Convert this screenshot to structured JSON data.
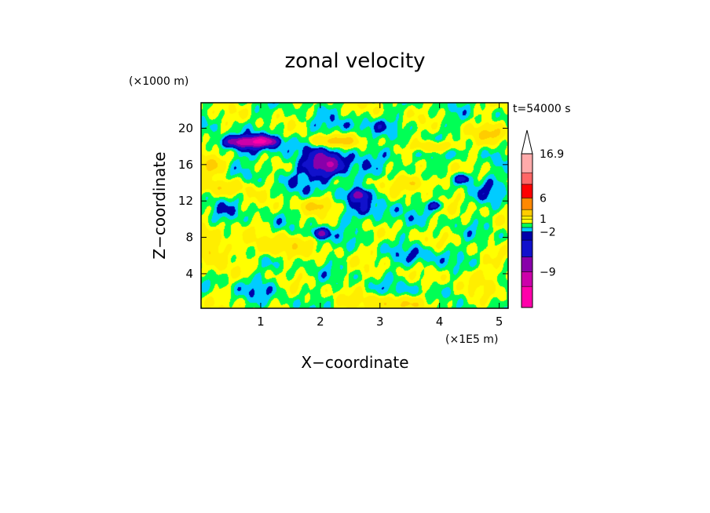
{
  "chart_data": {
    "type": "heatmap",
    "title": "zonal velocity",
    "xlabel": "X−coordinate",
    "ylabel": "Z−coordinate",
    "x_unit": "(×1E5 m)",
    "y_unit": "(×1000 m)",
    "time_label": "t=54000 s",
    "xlim": [
      0,
      5.15
    ],
    "ylim": [
      0.2,
      22.8
    ],
    "xticks": [
      1,
      2,
      3,
      4,
      5
    ],
    "yticks": [
      4,
      8,
      12,
      16,
      20
    ],
    "colorbar": {
      "levels": [
        -12,
        -9,
        -6,
        -4,
        -2,
        -1,
        0,
        1,
        2,
        4,
        6,
        8,
        12,
        16.9
      ],
      "colors": [
        "#ff00aa",
        "#cc00aa",
        "#8800aa",
        "#1111cc",
        "#0000aa",
        "#00ccff",
        "#00ff55",
        "#ffff00",
        "#ffee00",
        "#ffcc00",
        "#ff8800",
        "#ff0000",
        "#ff6666",
        "#ffaaaa"
      ],
      "labels": [
        "16.9",
        "6",
        "1",
        "−2",
        "−9"
      ],
      "label_values": [
        16.9,
        6,
        1,
        -2,
        -9
      ]
    },
    "features": [
      {
        "x": 0.7,
        "z": 18.5,
        "sx": 0.35,
        "sz": 0.6,
        "v": -6
      },
      {
        "x": 1.05,
        "z": 18.6,
        "sx": 0.25,
        "sz": 0.5,
        "v": -6
      },
      {
        "x": 0.85,
        "z": 18.0,
        "sx": 0.7,
        "sz": 1.3,
        "v": -1.8
      },
      {
        "x": 2.1,
        "z": 16.0,
        "sx": 0.28,
        "sz": 1.3,
        "v": -6
      },
      {
        "x": 2.0,
        "z": 15.5,
        "sx": 0.7,
        "sz": 2.5,
        "v": -1.6
      },
      {
        "x": 2.65,
        "z": 12.7,
        "sx": 0.12,
        "sz": 0.6,
        "v": -6
      },
      {
        "x": 2.8,
        "z": 11.0,
        "sx": 0.55,
        "sz": 1.8,
        "v": -1.6
      },
      {
        "x": 2.0,
        "z": 8.4,
        "sx": 0.13,
        "sz": 0.6,
        "v": -6
      },
      {
        "x": 3.8,
        "z": 6.0,
        "sx": 0.5,
        "sz": 1.0,
        "v": -1.5
      },
      {
        "x": 4.4,
        "z": 14.5,
        "sx": 0.15,
        "sz": 0.6,
        "v": -4
      },
      {
        "x": 3.95,
        "z": 11.5,
        "sx": 0.12,
        "sz": 0.5,
        "v": -4
      },
      {
        "x": 4.85,
        "z": 13.5,
        "sx": 0.35,
        "sz": 1.5,
        "v": -1.4
      },
      {
        "x": 2.6,
        "z": 20.3,
        "sx": 0.9,
        "sz": 0.9,
        "v": -1.2
      },
      {
        "x": 3.5,
        "z": 17.2,
        "sx": 0.8,
        "sz": 0.9,
        "v": -1.2
      },
      {
        "x": 3.6,
        "z": 2.0,
        "sx": 0.5,
        "sz": 1.2,
        "v": -1.2
      },
      {
        "x": 0.15,
        "z": 16.0,
        "sx": 0.25,
        "sz": 1.0,
        "v": 4
      },
      {
        "x": 0.15,
        "z": 7.0,
        "sx": 0.25,
        "sz": 1.8,
        "v": 4
      },
      {
        "x": 2.2,
        "z": 18.6,
        "sx": 0.35,
        "sz": 0.6,
        "v": 4.5
      },
      {
        "x": 3.95,
        "z": 18.0,
        "sx": 0.35,
        "sz": 0.6,
        "v": 4
      },
      {
        "x": 3.6,
        "z": 14.0,
        "sx": 0.4,
        "sz": 0.8,
        "v": 3
      },
      {
        "x": 0.45,
        "z": 13.5,
        "sx": 0.3,
        "sz": 0.8,
        "v": 3
      },
      {
        "x": 1.95,
        "z": 11.5,
        "sx": 0.35,
        "sz": 0.8,
        "v": 3
      },
      {
        "x": 3.3,
        "z": 0.8,
        "sx": 0.7,
        "sz": 0.9,
        "v": 3
      },
      {
        "x": 1.3,
        "z": 7.0,
        "sx": 0.4,
        "sz": 1.2,
        "v": 3
      },
      {
        "x": 4.6,
        "z": 3.5,
        "sx": 0.4,
        "sz": 1.2,
        "v": 1.6
      },
      {
        "x": 1.0,
        "z": 2.5,
        "sx": 0.45,
        "sz": 1.2,
        "v": -1.1
      },
      {
        "x": 0.4,
        "z": 10.5,
        "sx": 0.3,
        "sz": 1.5,
        "v": -1.0
      },
      {
        "x": 4.9,
        "z": 19.5,
        "sx": 0.3,
        "sz": 1.0,
        "v": 3
      }
    ]
  }
}
